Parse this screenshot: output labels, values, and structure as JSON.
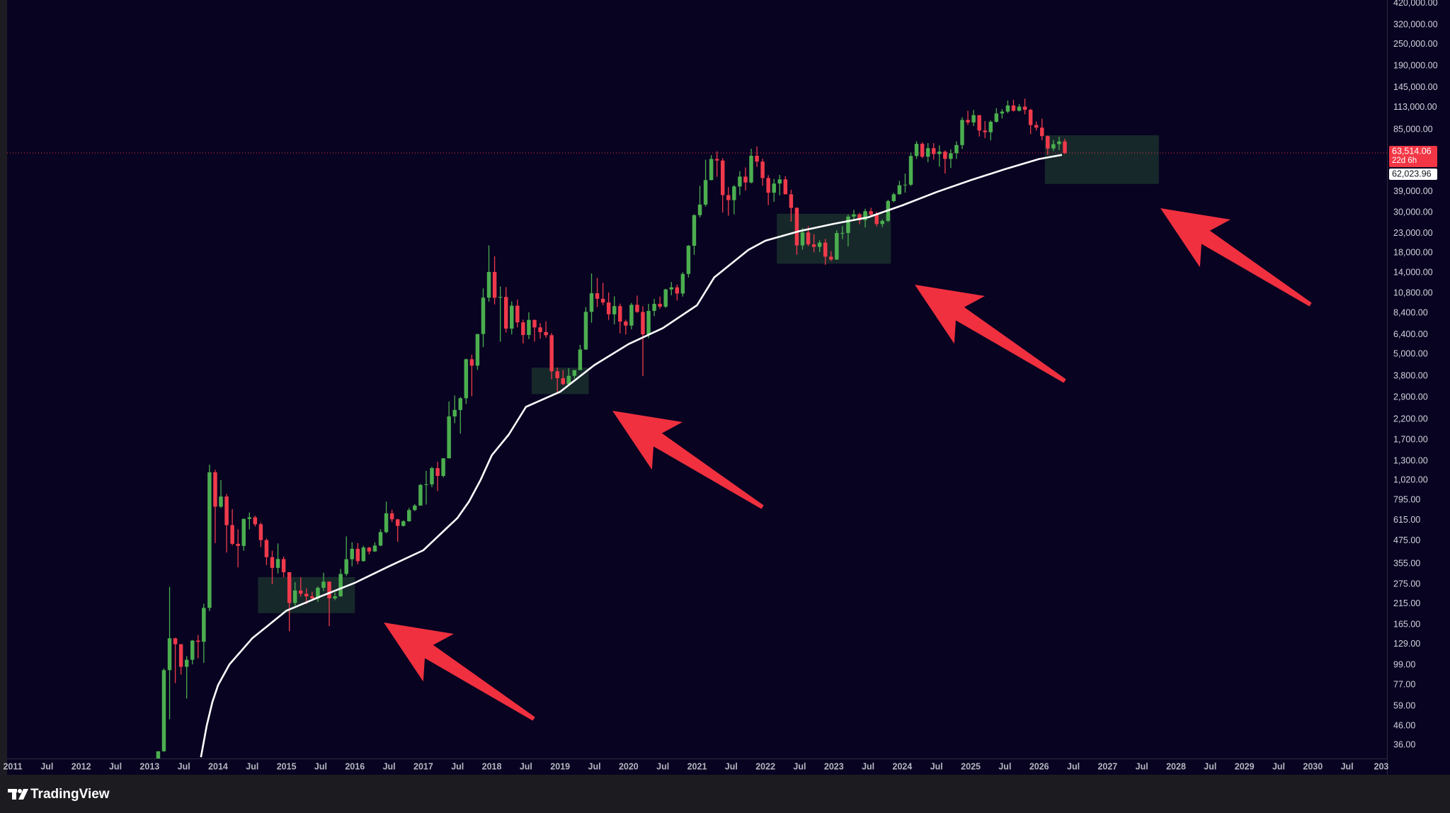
{
  "chart_data": {
    "type": "candlestick",
    "log_scale": true,
    "grid": false,
    "up_color": "#4bae4f",
    "down_color": "#ef3a4b",
    "x": [
      "2013-01",
      "2013-02",
      "2013-03",
      "2013-04",
      "2013-05",
      "2013-06",
      "2013-07",
      "2013-08",
      "2013-09",
      "2013-10",
      "2013-11",
      "2013-12",
      "2014-01",
      "2014-02",
      "2014-03",
      "2014-04",
      "2014-05",
      "2014-06",
      "2014-07",
      "2014-08",
      "2014-09",
      "2014-10",
      "2014-11",
      "2014-12",
      "2015-01",
      "2015-02",
      "2015-03",
      "2015-04",
      "2015-05",
      "2015-06",
      "2015-07",
      "2015-08",
      "2015-09",
      "2015-10",
      "2015-11",
      "2015-12",
      "2016-01",
      "2016-02",
      "2016-03",
      "2016-04",
      "2016-05",
      "2016-06",
      "2016-07",
      "2016-08",
      "2016-09",
      "2016-10",
      "2016-11",
      "2016-12",
      "2017-01",
      "2017-02",
      "2017-03",
      "2017-04",
      "2017-05",
      "2017-06",
      "2017-07",
      "2017-08",
      "2017-09",
      "2017-10",
      "2017-11",
      "2017-12",
      "2018-01",
      "2018-02",
      "2018-03",
      "2018-04",
      "2018-05",
      "2018-06",
      "2018-07",
      "2018-08",
      "2018-09",
      "2018-10",
      "2018-11",
      "2018-12",
      "2019-01",
      "2019-02",
      "2019-03",
      "2019-04",
      "2019-05",
      "2019-06",
      "2019-07",
      "2019-08",
      "2019-09",
      "2019-10",
      "2019-11",
      "2019-12",
      "2020-01",
      "2020-02",
      "2020-03",
      "2020-04",
      "2020-05",
      "2020-06",
      "2020-07",
      "2020-08",
      "2020-09",
      "2020-10",
      "2020-11",
      "2020-12",
      "2021-01",
      "2021-02",
      "2021-03",
      "2021-04",
      "2021-05",
      "2021-06",
      "2021-07",
      "2021-08",
      "2021-09",
      "2021-10",
      "2021-11",
      "2021-12",
      "2022-01",
      "2022-02",
      "2022-03",
      "2022-04",
      "2022-05",
      "2022-06",
      "2022-07",
      "2022-08",
      "2022-09",
      "2022-10",
      "2022-11",
      "2022-12",
      "2023-01",
      "2023-02",
      "2023-03",
      "2023-04",
      "2023-05",
      "2023-06",
      "2023-07",
      "2023-08",
      "2023-09",
      "2023-10",
      "2023-11",
      "2023-12",
      "2024-01",
      "2024-02",
      "2024-03",
      "2024-04",
      "2024-05",
      "2024-06",
      "2024-07",
      "2024-08",
      "2024-09",
      "2024-10",
      "2024-11",
      "2024-12",
      "2025-01",
      "2025-02",
      "2025-03",
      "2025-04",
      "2025-05",
      "2025-06",
      "2025-07",
      "2025-08",
      "2025-09",
      "2025-10",
      "2025-11",
      "2025-12",
      "2026-01",
      "2026-02",
      "2026-03",
      "2026-04",
      "2026-05"
    ],
    "open": [
      13.5,
      20.4,
      33.4,
      93,
      139,
      129,
      97,
      106,
      135,
      133,
      204,
      1129,
      732,
      832,
      580,
      458,
      446,
      627,
      640,
      586,
      480,
      387,
      338,
      378,
      320,
      217,
      254,
      244,
      236,
      230,
      263,
      284,
      230,
      236,
      313,
      377,
      430,
      368,
      437,
      416,
      448,
      531,
      673,
      624,
      574,
      609,
      701,
      742,
      963,
      970,
      1190,
      1079,
      1348,
      2286,
      2480,
      2875,
      4703,
      4339,
      6468,
      10233,
      14156,
      10221,
      10326,
      6926,
      9246,
      7494,
      6391,
      7729,
      7030,
      6626,
      6371,
      4041,
      3702,
      3434,
      3814,
      4103,
      5321,
      8556,
      10818,
      10085,
      9630,
      8294,
      9199,
      7569,
      7194,
      9350,
      8543,
      6438,
      8658,
      9461,
      9137,
      11351,
      11655,
      10779,
      13804,
      19700,
      28990,
      33114,
      45137,
      58918,
      57750,
      37332,
      35040,
      41626,
      47167,
      43790,
      61318,
      57005,
      46306,
      38483,
      43194,
      45538,
      37714,
      31792,
      19785,
      23296,
      20050,
      19431,
      20495,
      17168,
      16548,
      23139,
      23147,
      28478,
      29268,
      27219,
      30477,
      29230,
      25931,
      26962,
      34639,
      37712,
      42265,
      42580,
      61130,
      71330,
      60636,
      67491,
      62678,
      64619,
      58969,
      63329,
      70215,
      96405,
      93429,
      102430,
      84350,
      82550,
      94200,
      104600,
      107100,
      115750,
      108250,
      114050,
      109600,
      90400,
      87500,
      78600,
      67200,
      71000,
      73500
    ],
    "high": [
      20.4,
      33.4,
      95,
      266,
      140,
      129,
      111,
      136,
      145,
      215,
      1242,
      1165,
      1023,
      860,
      710,
      550,
      630,
      680,
      652,
      600,
      490,
      420,
      460,
      390,
      320,
      282,
      300,
      261,
      250,
      267,
      318,
      285,
      248,
      333,
      503,
      467,
      462,
      447,
      440,
      467,
      551,
      780,
      704,
      627,
      617,
      721,
      755,
      975,
      1150,
      1210,
      1290,
      1350,
      2760,
      2980,
      2915,
      4736,
      4980,
      6470,
      11500,
      19800,
      17250,
      11800,
      11700,
      9760,
      9990,
      7760,
      8500,
      7760,
      7410,
      7590,
      6550,
      4240,
      4110,
      4200,
      4100,
      5640,
      9090,
      13880,
      13140,
      12330,
      10930,
      10400,
      9500,
      7750,
      9580,
      10500,
      9190,
      9470,
      10070,
      10380,
      11450,
      12480,
      12070,
      14100,
      19860,
      29300,
      41950,
      58350,
      61780,
      64850,
      59500,
      41330,
      42400,
      50500,
      52900,
      67000,
      69000,
      59100,
      47990,
      45820,
      48190,
      47450,
      39900,
      31990,
      24670,
      25200,
      22800,
      21100,
      21480,
      18390,
      23960,
      25250,
      29190,
      31000,
      29820,
      31430,
      31800,
      30200,
      27480,
      35200,
      38450,
      44700,
      48960,
      64000,
      73800,
      72800,
      71980,
      71950,
      70000,
      65600,
      66500,
      73600,
      99600,
      108300,
      109350,
      102500,
      95000,
      95760,
      111900,
      110500,
      123200,
      124400,
      117900,
      126200,
      111000,
      94600,
      97900,
      79300,
      75000,
      78000,
      76000
    ],
    "low": [
      13.2,
      19.6,
      33.2,
      50,
      79,
      88,
      65,
      100,
      108,
      102,
      196,
      462,
      720,
      410,
      450,
      340,
      420,
      550,
      570,
      440,
      350,
      275,
      315,
      300,
      152,
      210,
      235,
      214,
      229,
      220,
      252,
      162,
      225,
      235,
      305,
      345,
      354,
      366,
      401,
      414,
      444,
      523,
      602,
      470,
      570,
      604,
      692,
      740,
      752,
      935,
      891,
      1059,
      1344,
      2100,
      1837,
      2672,
      2950,
      4110,
      5480,
      9720,
      9400,
      5870,
      6590,
      6430,
      7040,
      5750,
      6070,
      5880,
      6100,
      6170,
      3650,
      3120,
      3400,
      3380,
      3690,
      4100,
      5290,
      7460,
      9080,
      9320,
      7730,
      7300,
      6520,
      6430,
      6860,
      8450,
      3800,
      6150,
      8100,
      8900,
      8980,
      10540,
      9880,
      10370,
      13200,
      17570,
      28130,
      32300,
      44950,
      47050,
      30000,
      28800,
      29280,
      37330,
      39600,
      43280,
      53250,
      42000,
      32900,
      34300,
      37200,
      37700,
      26700,
      17600,
      18780,
      19600,
      18150,
      18190,
      15480,
      16260,
      16500,
      21400,
      19550,
      26940,
      25870,
      24800,
      28860,
      25170,
      24930,
      26560,
      34110,
      37620,
      38500,
      41880,
      59000,
      59600,
      56550,
      58400,
      53500,
      49000,
      52550,
      58900,
      66800,
      90500,
      89200,
      78200,
      76600,
      74500,
      93300,
      98200,
      105100,
      107300,
      107300,
      103500,
      80600,
      84400,
      74500,
      62000,
      65000,
      66000,
      62500
    ],
    "close": [
      20.4,
      33.4,
      93,
      139,
      129,
      97,
      106,
      135,
      133,
      204,
      1129,
      732,
      832,
      580,
      458,
      446,
      627,
      640,
      586,
      480,
      387,
      338,
      378,
      320,
      217,
      254,
      244,
      236,
      230,
      263,
      284,
      230,
      236,
      313,
      377,
      430,
      368,
      437,
      416,
      448,
      531,
      673,
      624,
      574,
      609,
      701,
      742,
      963,
      970,
      1190,
      1079,
      1348,
      2286,
      2480,
      2875,
      4703,
      4339,
      6468,
      10233,
      14156,
      10221,
      10326,
      6926,
      9246,
      7494,
      6391,
      7729,
      7030,
      6626,
      6371,
      4041,
      3702,
      3434,
      3814,
      4103,
      5321,
      8556,
      10818,
      10085,
      9630,
      8294,
      9199,
      7569,
      7194,
      9350,
      8543,
      6438,
      8658,
      9461,
      9137,
      11351,
      11655,
      10779,
      13804,
      19700,
      28990,
      33114,
      45137,
      58918,
      57750,
      37332,
      35040,
      41626,
      47167,
      43790,
      61318,
      57005,
      46306,
      38483,
      43194,
      45538,
      37714,
      31792,
      19785,
      23296,
      20050,
      19431,
      20495,
      17168,
      16548,
      23139,
      23147,
      28478,
      29268,
      27219,
      30477,
      29230,
      25931,
      26962,
      34639,
      37712,
      42265,
      42580,
      61130,
      71330,
      60636,
      67491,
      62678,
      64619,
      58969,
      63329,
      70215,
      96405,
      93429,
      102430,
      84350,
      82550,
      94200,
      104600,
      107100,
      115750,
      108250,
      114050,
      109600,
      90400,
      87500,
      78600,
      67200,
      71000,
      73500,
      63514.06
    ],
    "moving_average": {
      "color": "#ffffff",
      "x": [
        "2013-10",
        "2013-11",
        "2013-12",
        "2014-01",
        "2014-03",
        "2014-07",
        "2015-01",
        "2015-07",
        "2016-01",
        "2016-07",
        "2017-01",
        "2017-07",
        "2017-09",
        "2017-11",
        "2018-01",
        "2018-04",
        "2018-07",
        "2019-01",
        "2019-07",
        "2020-01",
        "2020-07",
        "2021-01",
        "2021-04",
        "2021-07",
        "2021-10",
        "2022-01",
        "2022-07",
        "2023-01",
        "2023-07",
        "2024-01",
        "2024-07",
        "2025-01",
        "2025-07",
        "2026-01",
        "2026-05"
      ],
      "values": [
        31,
        46,
        62,
        77,
        100,
        139,
        197,
        236,
        280,
        345,
        422,
        635,
        780,
        1020,
        1400,
        1820,
        2580,
        3120,
        4370,
        5700,
        6970,
        9300,
        13200,
        15700,
        18700,
        21000,
        23700,
        26000,
        28200,
        32800,
        38800,
        45100,
        51800,
        58900,
        62023.96
      ],
      "last_label": "62,023.96"
    },
    "last_price": {
      "value": 63514.06,
      "label": "63,514.06",
      "countdown": "22d 6h",
      "color": "#f23645"
    },
    "zone_color": "rgba(76,175,80,0.22)",
    "zones": [
      {
        "from": "2014-08",
        "to": "2016-01",
        "low": 191,
        "high": 301
      },
      {
        "from": "2018-08",
        "to": "2019-06",
        "low": 3030,
        "high": 4230
      },
      {
        "from": "2022-03",
        "to": "2023-11",
        "low": 15700,
        "high": 29500
      },
      {
        "from": "2026-02",
        "to": "2027-10",
        "low": 43000,
        "high": 79500
      }
    ],
    "xlim": [
      "2010-12",
      "2031-02"
    ],
    "ylim": [
      30.5,
      438000
    ],
    "yticks": [
      {
        "value": 420000,
        "label": "420,000.00"
      },
      {
        "value": 320000,
        "label": "320,000.00"
      },
      {
        "value": 250000,
        "label": "250,000.00"
      },
      {
        "value": 190000,
        "label": "190,000.00"
      },
      {
        "value": 145000,
        "label": "145,000.00"
      },
      {
        "value": 113000,
        "label": "113,000.00"
      },
      {
        "value": 85000,
        "label": "85,000.00"
      },
      {
        "value": 39000,
        "label": "39,000.00"
      },
      {
        "value": 30000,
        "label": "30,000.00"
      },
      {
        "value": 23000,
        "label": "23,000.00"
      },
      {
        "value": 18000,
        "label": "18,000.00"
      },
      {
        "value": 14000,
        "label": "14,000.00"
      },
      {
        "value": 10800,
        "label": "10,800.00"
      },
      {
        "value": 8400,
        "label": "8,400.00"
      },
      {
        "value": 6400,
        "label": "6,400.00"
      },
      {
        "value": 5000,
        "label": "5,000.00"
      },
      {
        "value": 3800,
        "label": "3,800.00"
      },
      {
        "value": 2900,
        "label": "2,900.00"
      },
      {
        "value": 2200,
        "label": "2,200.00"
      },
      {
        "value": 1700,
        "label": "1,700.00"
      },
      {
        "value": 1300,
        "label": "1,300.00"
      },
      {
        "value": 1020,
        "label": "1,020.00"
      },
      {
        "value": 795,
        "label": "795.00"
      },
      {
        "value": 615,
        "label": "615.00"
      },
      {
        "value": 475,
        "label": "475.00"
      },
      {
        "value": 355,
        "label": "355.00"
      },
      {
        "value": 275,
        "label": "275.00"
      },
      {
        "value": 215,
        "label": "215.00"
      },
      {
        "value": 165,
        "label": "165.00"
      },
      {
        "value": 129,
        "label": "129.00"
      },
      {
        "value": 99,
        "label": "99.00"
      },
      {
        "value": 77,
        "label": "77.00"
      },
      {
        "value": 59,
        "label": "59.00"
      },
      {
        "value": 46,
        "label": "46.00"
      },
      {
        "value": 36,
        "label": "36.00"
      }
    ],
    "xticks": [
      {
        "value": "2011-01",
        "label": "2011"
      },
      {
        "value": "2011-07",
        "label": "Jul"
      },
      {
        "value": "2012-01",
        "label": "2012"
      },
      {
        "value": "2012-07",
        "label": "Jul"
      },
      {
        "value": "2013-01",
        "label": "2013"
      },
      {
        "value": "2013-07",
        "label": "Jul"
      },
      {
        "value": "2014-01",
        "label": "2014"
      },
      {
        "value": "2014-07",
        "label": "Jul"
      },
      {
        "value": "2015-01",
        "label": "2015"
      },
      {
        "value": "2015-07",
        "label": "Jul"
      },
      {
        "value": "2016-01",
        "label": "2016"
      },
      {
        "value": "2016-07",
        "label": "Jul"
      },
      {
        "value": "2017-01",
        "label": "2017"
      },
      {
        "value": "2017-07",
        "label": "Jul"
      },
      {
        "value": "2018-01",
        "label": "2018"
      },
      {
        "value": "2018-07",
        "label": "Jul"
      },
      {
        "value": "2019-01",
        "label": "2019"
      },
      {
        "value": "2019-07",
        "label": "Jul"
      },
      {
        "value": "2020-01",
        "label": "2020"
      },
      {
        "value": "2020-07",
        "label": "Jul"
      },
      {
        "value": "2021-01",
        "label": "2021"
      },
      {
        "value": "2021-07",
        "label": "Jul"
      },
      {
        "value": "2022-01",
        "label": "2022"
      },
      {
        "value": "2022-07",
        "label": "Jul"
      },
      {
        "value": "2023-01",
        "label": "2023"
      },
      {
        "value": "2023-07",
        "label": "Jul"
      },
      {
        "value": "2024-01",
        "label": "2024"
      },
      {
        "value": "2024-07",
        "label": "Jul"
      },
      {
        "value": "2025-01",
        "label": "2025"
      },
      {
        "value": "2025-07",
        "label": "Jul"
      },
      {
        "value": "2026-01",
        "label": "2026"
      },
      {
        "value": "2026-07",
        "label": "Jul"
      },
      {
        "value": "2027-01",
        "label": "2027"
      },
      {
        "value": "2027-07",
        "label": "Jul"
      },
      {
        "value": "2028-01",
        "label": "2028"
      },
      {
        "value": "2028-07",
        "label": "Jul"
      },
      {
        "value": "2029-01",
        "label": "2029"
      },
      {
        "value": "2029-07",
        "label": "Jul"
      },
      {
        "value": "2030-01",
        "label": "2030"
      },
      {
        "value": "2030-07",
        "label": "Jul"
      },
      {
        "value": "2031-01",
        "label": "203"
      }
    ]
  },
  "brand": "TradingView"
}
